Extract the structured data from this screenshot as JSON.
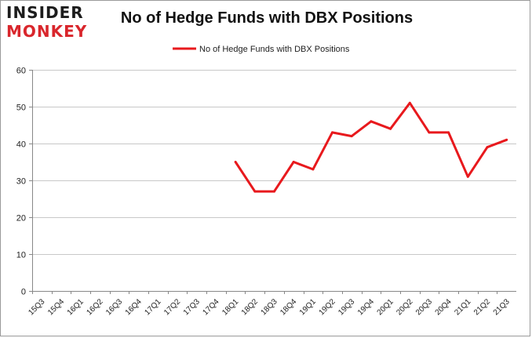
{
  "logo": {
    "line1": "INSIDER",
    "line2": "MONKEY"
  },
  "chart_data": {
    "type": "line",
    "title": "No of Hedge Funds with DBX Positions",
    "xlabel": "",
    "ylabel": "",
    "ylim": [
      0,
      60
    ],
    "yticks": [
      0,
      10,
      20,
      30,
      40,
      50,
      60
    ],
    "grid": true,
    "legend_position": "top-center",
    "categories": [
      "15Q3",
      "15Q4",
      "16Q1",
      "16Q2",
      "16Q3",
      "16Q4",
      "17Q1",
      "17Q2",
      "17Q3",
      "17Q4",
      "18Q1",
      "18Q2",
      "18Q3",
      "18Q4",
      "19Q1",
      "19Q2",
      "19Q3",
      "19Q4",
      "20Q1",
      "20Q2",
      "20Q3",
      "20Q4",
      "21Q1",
      "21Q2",
      "21Q3"
    ],
    "series": [
      {
        "name": "No of Hedge Funds with DBX Positions",
        "color": "#e8191d",
        "values": [
          null,
          null,
          null,
          null,
          null,
          null,
          null,
          null,
          null,
          null,
          35,
          27,
          27,
          35,
          33,
          43,
          42,
          46,
          44,
          51,
          43,
          43,
          31,
          39,
          41
        ]
      }
    ]
  }
}
